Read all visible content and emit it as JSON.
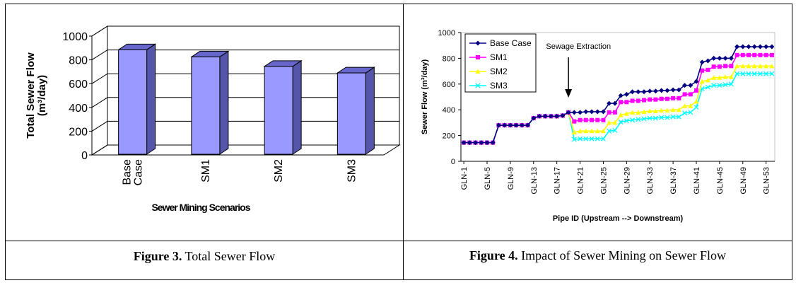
{
  "chart_data": [
    {
      "type": "bar",
      "style": "3d",
      "categories": [
        "Base Case",
        "SM1",
        "SM2",
        "SM3"
      ],
      "category_lines": [
        [
          "Base",
          "Case"
        ],
        [
          "SM1"
        ],
        [
          "SM2"
        ],
        [
          "SM3"
        ]
      ],
      "values": [
        885,
        825,
        745,
        690
      ],
      "ylabel_lines": [
        "Total Sewer Flow",
        "(m³/day)"
      ],
      "xlabel": "Sewer Mining Scenarios",
      "ylim": [
        0,
        1000
      ],
      "yticks": [
        "0",
        "200",
        "400",
        "600",
        "800",
        "1000"
      ],
      "grid": true,
      "bar_color": "#9999ff"
    },
    {
      "type": "line",
      "title_annotation": "Sewage Extraction",
      "annotation_x_index": 18,
      "xlabel": "Pipe ID (Upstream --> Downstream)",
      "ylabel": "Sewer Flow (m³/day)",
      "ylim": [
        0,
        1000
      ],
      "yticks": [
        "0",
        "200",
        "400",
        "600",
        "800",
        "1000"
      ],
      "xtick_labels": [
        "GLN-1",
        "GLN-5",
        "GLN-9",
        "GLN-13",
        "GLN-17",
        "GLN-21",
        "GLN-25",
        "GLN-29",
        "GLN-33",
        "GLN-37",
        "GLN-41",
        "GLN-45",
        "GLN-49",
        "GLN-53"
      ],
      "legend_position": "top-left",
      "series": [
        {
          "name": "Base Case",
          "color": "#000080",
          "marker": "diamond",
          "values": [
            145,
            145,
            145,
            145,
            145,
            145,
            280,
            280,
            280,
            280,
            280,
            280,
            335,
            350,
            350,
            350,
            350,
            355,
            380,
            380,
            380,
            385,
            385,
            385,
            385,
            450,
            450,
            510,
            520,
            540,
            540,
            540,
            545,
            545,
            550,
            550,
            555,
            555,
            590,
            590,
            620,
            770,
            780,
            800,
            800,
            800,
            800,
            890,
            890,
            890,
            890,
            890,
            890,
            890
          ]
        },
        {
          "name": "SM1",
          "color": "#ff00ff",
          "marker": "square",
          "values": [
            145,
            145,
            145,
            145,
            145,
            145,
            280,
            280,
            280,
            280,
            280,
            280,
            335,
            350,
            350,
            350,
            350,
            355,
            380,
            310,
            320,
            320,
            320,
            320,
            320,
            380,
            380,
            460,
            460,
            470,
            470,
            475,
            480,
            480,
            485,
            485,
            490,
            490,
            520,
            520,
            550,
            705,
            710,
            735,
            735,
            740,
            740,
            825,
            825,
            825,
            825,
            825,
            825,
            825
          ]
        },
        {
          "name": "SM2",
          "color": "#ffff00",
          "marker": "triangle",
          "values": [
            145,
            145,
            145,
            145,
            145,
            145,
            280,
            280,
            280,
            280,
            280,
            280,
            335,
            350,
            350,
            350,
            350,
            355,
            380,
            225,
            235,
            235,
            235,
            235,
            235,
            300,
            300,
            360,
            370,
            380,
            380,
            385,
            390,
            390,
            395,
            395,
            400,
            400,
            430,
            430,
            465,
            620,
            630,
            650,
            650,
            655,
            655,
            740,
            740,
            740,
            740,
            740,
            740,
            740
          ]
        },
        {
          "name": "SM3",
          "color": "#00ffff",
          "marker": "x",
          "values": [
            145,
            145,
            145,
            145,
            145,
            145,
            280,
            280,
            280,
            280,
            280,
            280,
            335,
            350,
            350,
            350,
            350,
            355,
            380,
            170,
            175,
            175,
            175,
            175,
            175,
            235,
            240,
            305,
            315,
            320,
            325,
            330,
            335,
            335,
            340,
            340,
            345,
            345,
            375,
            380,
            420,
            565,
            575,
            590,
            590,
            595,
            600,
            680,
            680,
            680,
            680,
            680,
            680,
            680
          ]
        }
      ]
    }
  ],
  "captions": {
    "fig3_label": "Figure 3.",
    "fig3_text": " Total Sewer Flow",
    "fig4_label": "Figure 4.",
    "fig4_text": " Impact of Sewer Mining on Sewer Flow"
  }
}
